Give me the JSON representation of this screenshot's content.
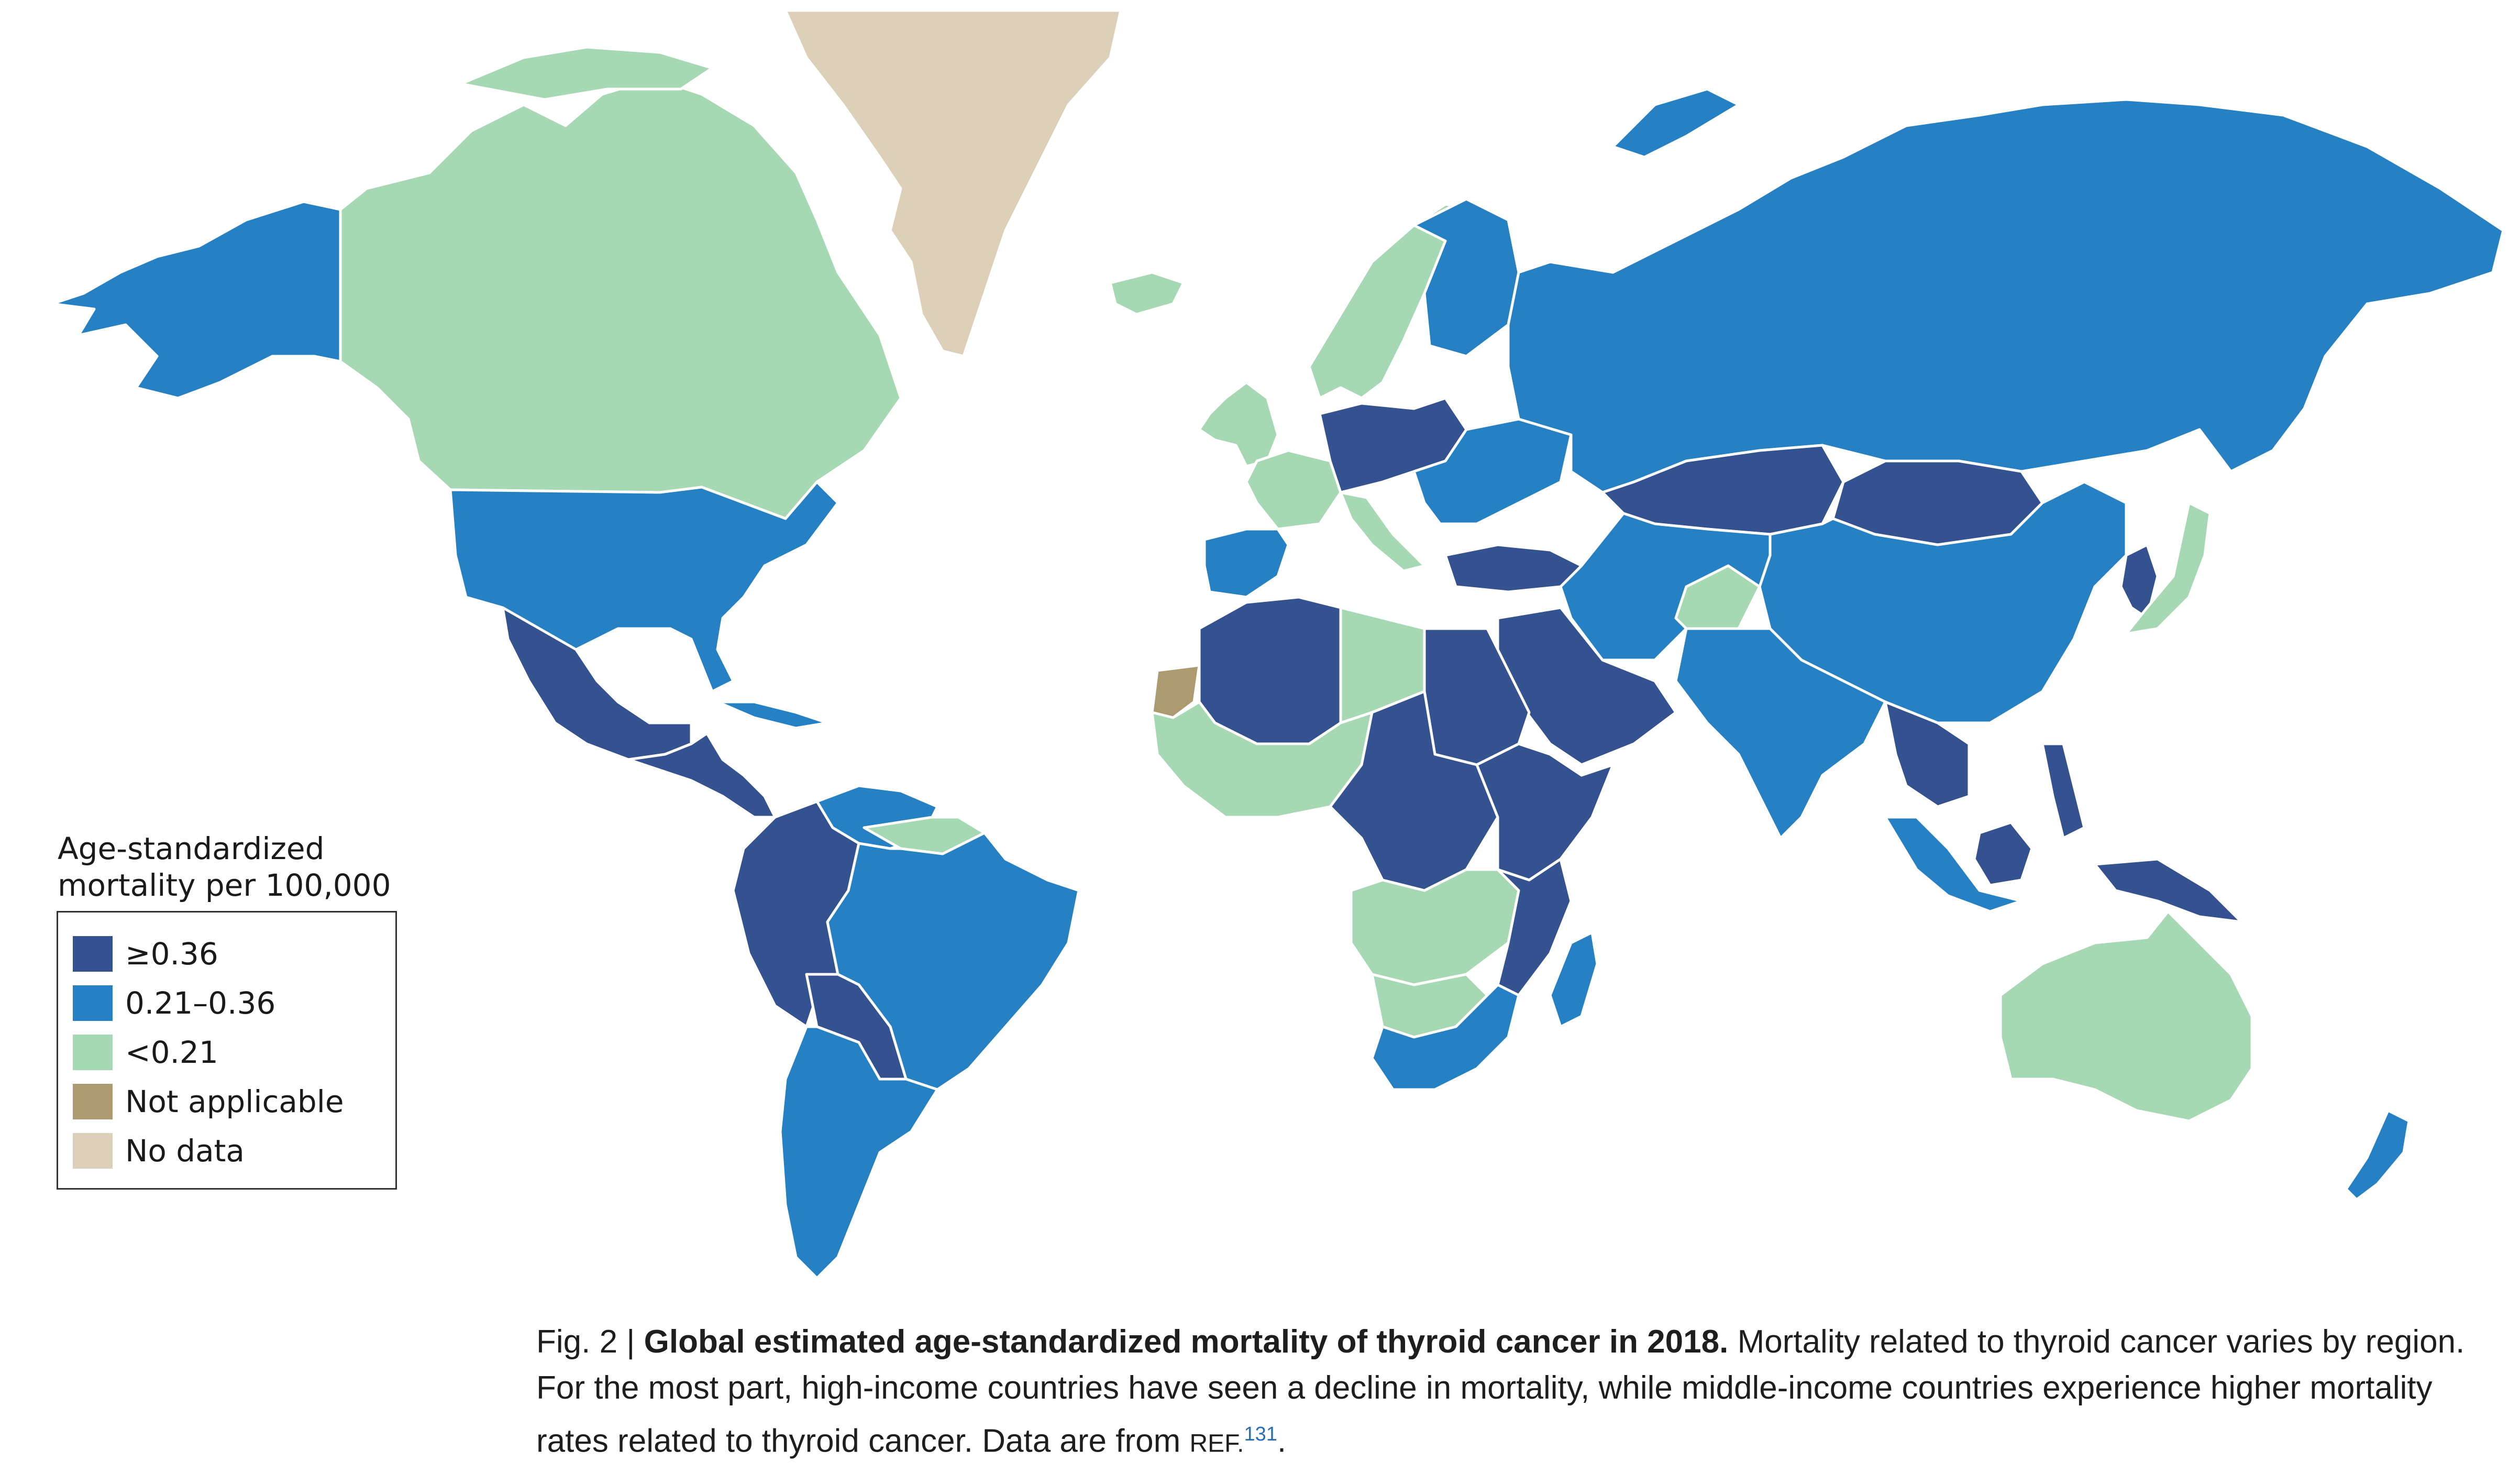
{
  "legend": {
    "title_line1": "Age-standardized",
    "title_line2": "mortality per 100,000",
    "items": [
      {
        "label": "≥0.36",
        "color": "#34528f"
      },
      {
        "label": "0.21–0.36",
        "color": "#2581c4"
      },
      {
        "label": "<0.21",
        "color": "#a6d8b4"
      },
      {
        "label": "Not applicable",
        "color": "#ad9a71"
      },
      {
        "label": "No data",
        "color": "#ddd0b8"
      }
    ]
  },
  "caption": {
    "fig_num": "Fig. 2 |",
    "title": "Global estimated age-standardized mortality of thyroid cancer in 2018.",
    "body": "Mortality related to thyroid cancer varies by region. For the most part, high-income countries have seen a decline in mortality, while middle-income countries experience higher mortality rates related to thyroid cancer. Data are from",
    "ref_label": "REF.",
    "ref_number": "131",
    "end": "."
  },
  "colors": {
    "high": "#34528f",
    "mid": "#2581c4",
    "low": "#a6d8b4",
    "not_applicable": "#ad9a71",
    "no_data": "#ddd0b8",
    "border": "#ffffff"
  },
  "regions": [
    {
      "id": "alaska",
      "class": "mid"
    },
    {
      "id": "canada",
      "class": "low"
    },
    {
      "id": "usa",
      "class": "mid"
    },
    {
      "id": "mexico",
      "class": "high"
    },
    {
      "id": "central-america",
      "class": "high"
    },
    {
      "id": "cuba",
      "class": "mid"
    },
    {
      "id": "venezuela",
      "class": "mid"
    },
    {
      "id": "colombia-ecuador-peru",
      "class": "high"
    },
    {
      "id": "guianas",
      "class": "low"
    },
    {
      "id": "brazil",
      "class": "mid"
    },
    {
      "id": "bolivia-paraguay",
      "class": "high"
    },
    {
      "id": "chile-argentina",
      "class": "mid"
    },
    {
      "id": "greenland",
      "class": "no_data"
    },
    {
      "id": "iceland",
      "class": "low"
    },
    {
      "id": "norway-sweden",
      "class": "low"
    },
    {
      "id": "finland",
      "class": "mid"
    },
    {
      "id": "uk-ireland",
      "class": "low"
    },
    {
      "id": "france",
      "class": "low"
    },
    {
      "id": "iberia",
      "class": "mid"
    },
    {
      "id": "central-europe",
      "class": "high"
    },
    {
      "id": "eastern-europe",
      "class": "mid"
    },
    {
      "id": "russia",
      "class": "mid"
    },
    {
      "id": "kazakhstan",
      "class": "high"
    },
    {
      "id": "mongolia",
      "class": "high"
    },
    {
      "id": "china",
      "class": "mid"
    },
    {
      "id": "turkey",
      "class": "high"
    },
    {
      "id": "iran-central-asia",
      "class": "mid"
    },
    {
      "id": "afghanistan",
      "class": "low"
    },
    {
      "id": "arabia",
      "class": "high"
    },
    {
      "id": "india-pakistan",
      "class": "mid"
    },
    {
      "id": "indochina",
      "class": "high"
    },
    {
      "id": "japan",
      "class": "low"
    },
    {
      "id": "korea",
      "class": "high"
    },
    {
      "id": "philippines",
      "class": "high"
    },
    {
      "id": "indonesia",
      "class": "mid"
    },
    {
      "id": "borneo",
      "class": "high"
    },
    {
      "id": "new-guinea",
      "class": "high"
    },
    {
      "id": "australia",
      "class": "low"
    },
    {
      "id": "new-zealand",
      "class": "mid"
    },
    {
      "id": "western-sahara",
      "class": "not_applicable"
    },
    {
      "id": "north-africa-west",
      "class": "high"
    },
    {
      "id": "libya",
      "class": "low"
    },
    {
      "id": "egypt-sudan",
      "class": "high"
    },
    {
      "id": "west-africa",
      "class": "low"
    },
    {
      "id": "central-africa",
      "class": "high"
    },
    {
      "id": "east-africa",
      "class": "high"
    },
    {
      "id": "angola-zambia",
      "class": "low"
    },
    {
      "id": "southeast-africa",
      "class": "high"
    },
    {
      "id": "namibia-botswana",
      "class": "low"
    },
    {
      "id": "south-africa",
      "class": "mid"
    },
    {
      "id": "madagascar",
      "class": "mid"
    }
  ]
}
